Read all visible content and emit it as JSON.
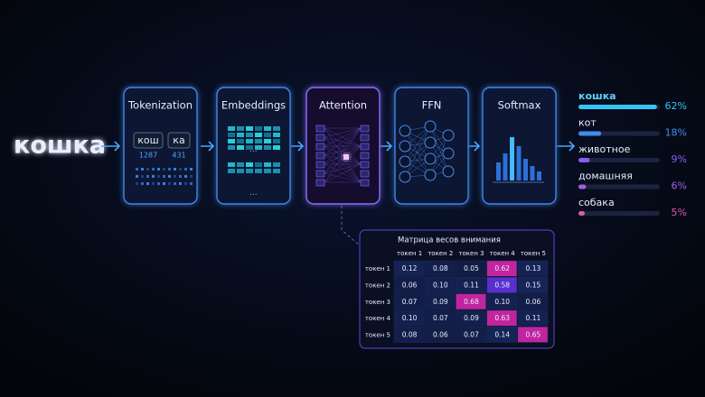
{
  "input_word": "кошка",
  "stages": [
    {
      "title": "Tokenization"
    },
    {
      "title": "Embeddings"
    },
    {
      "title": "Attention"
    },
    {
      "title": "FFN"
    },
    {
      "title": "Softmax"
    }
  ],
  "tokenization": {
    "tokens": [
      "кош",
      "ка"
    ],
    "ids": [
      1287,
      431
    ]
  },
  "predictions": {
    "labels": [
      "кошка",
      "кот",
      "животное",
      "домашняя",
      "собака"
    ],
    "values": [
      62,
      18,
      9,
      6,
      5
    ],
    "value_labels": [
      "62%",
      "18%",
      "9%",
      "6%",
      "5%"
    ],
    "colors": [
      "#35c3f5",
      "#3d8df0",
      "#8a5cf0",
      "#a45ce8",
      "#e05aa8"
    ]
  },
  "attention_matrix": {
    "title": "Матрица весов внимания",
    "columns": [
      "токен 1",
      "токен 2",
      "токен 3",
      "токен 4",
      "токен 5"
    ],
    "rows": [
      {
        "label": "токен 1",
        "values": [
          "0.12",
          "0.08",
          "0.05",
          "0.62",
          "0.13"
        ]
      },
      {
        "label": "токен 2",
        "values": [
          "0.06",
          "0.10",
          "0.11",
          "0.58",
          "0.15"
        ]
      },
      {
        "label": "токен 3",
        "values": [
          "0.07",
          "0.09",
          "0.68",
          "0.10",
          "0.06"
        ]
      },
      {
        "label": "токен 4",
        "values": [
          "0.10",
          "0.07",
          "0.09",
          "0.63",
          "0.11"
        ]
      },
      {
        "label": "токен 5",
        "values": [
          "0.08",
          "0.06",
          "0.07",
          "0.14",
          "0.65"
        ]
      }
    ]
  }
}
